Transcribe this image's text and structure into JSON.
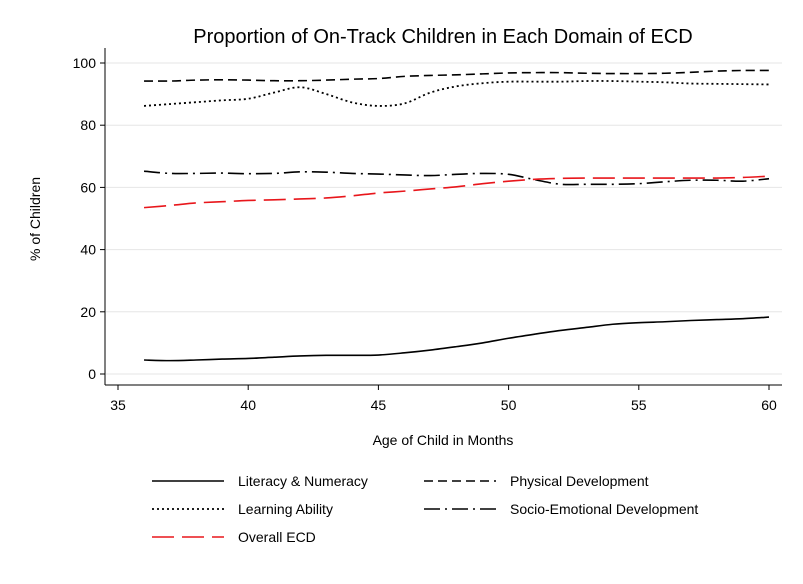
{
  "chart_data": {
    "type": "line",
    "title": "Proportion of On-Track Children in Each Domain of ECD",
    "xlabel": "Age of Child in Months",
    "ylabel": "% of Children",
    "xlim": [
      35,
      60
    ],
    "ylim": [
      0,
      100
    ],
    "xticks": [
      35,
      40,
      45,
      50,
      55,
      60
    ],
    "yticks": [
      0,
      20,
      40,
      60,
      80,
      100
    ],
    "grid": "horizontal",
    "legend_position": "bottom",
    "series": [
      {
        "name": "Literacy & Numeracy",
        "color": "#000000",
        "dash": "solid",
        "x": [
          36,
          37,
          38,
          39,
          40,
          41,
          42,
          43,
          44,
          45,
          46,
          47,
          48,
          49,
          50,
          51,
          52,
          53,
          54,
          55,
          56,
          57,
          58,
          59,
          60
        ],
        "y": [
          4.5,
          4.3,
          4.5,
          4.8,
          5.0,
          5.4,
          5.8,
          6.0,
          6.0,
          6.1,
          6.8,
          7.7,
          8.8,
          10.0,
          11.5,
          12.8,
          14.0,
          15.0,
          16.0,
          16.5,
          16.8,
          17.2,
          17.5,
          17.8,
          18.3
        ]
      },
      {
        "name": "Physical Development",
        "color": "#000000",
        "dash": "dashed",
        "x": [
          36,
          37,
          38,
          39,
          40,
          41,
          42,
          43,
          44,
          45,
          46,
          47,
          48,
          49,
          50,
          51,
          52,
          53,
          54,
          55,
          56,
          57,
          58,
          59,
          60
        ],
        "y": [
          94.2,
          94.2,
          94.5,
          94.6,
          94.5,
          94.3,
          94.3,
          94.5,
          94.8,
          95.0,
          95.7,
          96.0,
          96.2,
          96.5,
          96.8,
          96.9,
          96.9,
          96.7,
          96.6,
          96.6,
          96.7,
          97.0,
          97.4,
          97.6,
          97.6
        ]
      },
      {
        "name": "Learning Ability",
        "color": "#000000",
        "dash": "dotted",
        "x": [
          36,
          37,
          38,
          39,
          40,
          41,
          42,
          43,
          44,
          45,
          46,
          47,
          48,
          49,
          50,
          51,
          52,
          53,
          54,
          55,
          56,
          57,
          58,
          59,
          60
        ],
        "y": [
          86.2,
          86.8,
          87.4,
          88.0,
          88.5,
          90.5,
          92.2,
          90.0,
          87.3,
          86.2,
          87.0,
          90.5,
          92.5,
          93.5,
          94.0,
          94.0,
          94.0,
          94.2,
          94.2,
          94.0,
          93.8,
          93.4,
          93.3,
          93.2,
          93.1
        ]
      },
      {
        "name": "Socio-Emotional Development",
        "color": "#000000",
        "dash": "dashdot",
        "x": [
          36,
          37,
          38,
          39,
          40,
          41,
          42,
          43,
          44,
          45,
          46,
          47,
          48,
          49,
          50,
          51,
          52,
          53,
          54,
          55,
          56,
          57,
          58,
          59,
          60
        ],
        "y": [
          65.2,
          64.5,
          64.5,
          64.6,
          64.4,
          64.5,
          65.0,
          64.9,
          64.5,
          64.3,
          64.0,
          63.8,
          64.2,
          64.5,
          64.2,
          62.5,
          61.0,
          61.0,
          61.0,
          61.2,
          61.8,
          62.3,
          62.3,
          62.0,
          62.8
        ]
      },
      {
        "name": "Overall ECD",
        "color": "#e8161b",
        "dash": "longdash",
        "x": [
          36,
          37,
          38,
          39,
          40,
          41,
          42,
          43,
          44,
          45,
          46,
          47,
          48,
          49,
          50,
          51,
          52,
          53,
          54,
          55,
          56,
          57,
          58,
          59,
          60
        ],
        "y": [
          53.5,
          54.2,
          55.0,
          55.4,
          55.8,
          56.0,
          56.3,
          56.6,
          57.3,
          58.2,
          58.8,
          59.5,
          60.2,
          61.2,
          62.0,
          62.6,
          62.9,
          63.0,
          63.0,
          63.0,
          63.0,
          63.0,
          63.0,
          63.2,
          63.6
        ]
      }
    ]
  }
}
